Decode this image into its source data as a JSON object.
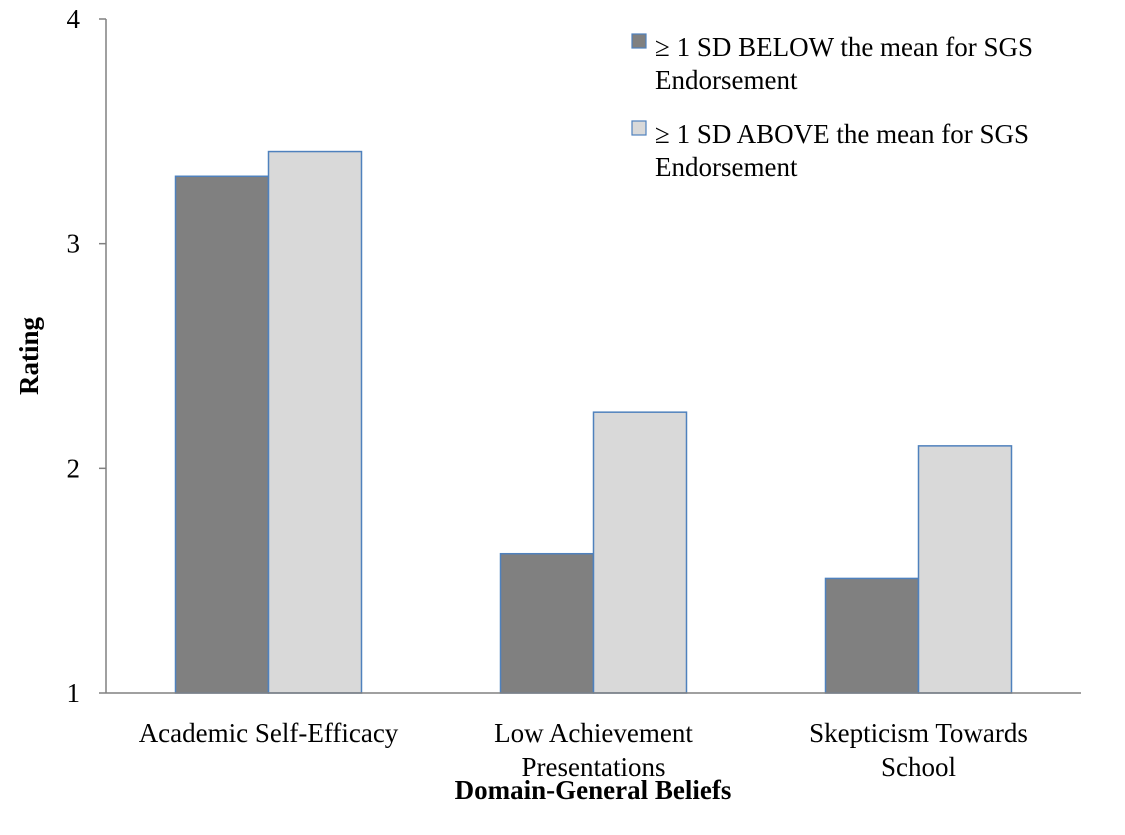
{
  "chart_data": {
    "type": "bar",
    "title": "",
    "xlabel": "Domain-General Beliefs",
    "ylabel": "Rating",
    "ylim": [
      1,
      4
    ],
    "yticks": [
      "1",
      "2",
      "3",
      "4"
    ],
    "grid": false,
    "legend_position": "top-right",
    "categories": [
      [
        "Academic Self-Efficacy"
      ],
      [
        "Low Achievement",
        "Presentations"
      ],
      [
        "Skepticism Towards",
        "School"
      ]
    ],
    "series": [
      {
        "name": [
          "≥ 1 SD BELOW the mean for SGS",
          "Endorsement"
        ],
        "color": "#808080",
        "values": [
          3.3,
          1.62,
          1.51
        ]
      },
      {
        "name": [
          "≥ 1 SD ABOVE the mean for SGS",
          "Endorsement"
        ],
        "color": "#d9d9d9",
        "values": [
          3.41,
          2.25,
          2.1
        ]
      }
    ],
    "bar_border_color": "#4f81bd"
  }
}
